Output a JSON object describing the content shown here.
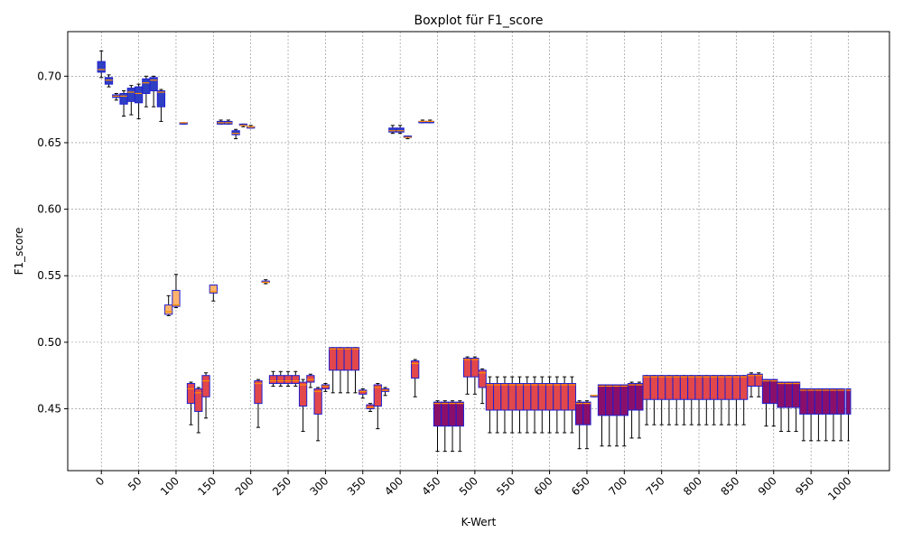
{
  "chart_data": {
    "type": "boxplot",
    "title": "Boxplot für F1_score",
    "xlabel": "K-Wert",
    "ylabel": "F1_score",
    "xlim": [
      -45,
      1055
    ],
    "ylim": [
      0.4035,
      0.7335
    ],
    "grid": true,
    "x_ticks": [
      "0",
      "50",
      "100",
      "150",
      "200",
      "250",
      "300",
      "350",
      "400",
      "450",
      "500",
      "550",
      "600",
      "650",
      "700",
      "750",
      "800",
      "850",
      "900",
      "950",
      "1000"
    ],
    "y_ticks": [
      "0.45",
      "0.50",
      "0.55",
      "0.60",
      "0.65",
      "0.70"
    ],
    "colors": {
      "blue_fill": "#2f3fc4",
      "orange_fill": "#ffb36b",
      "red_fill": "#e2474b",
      "purple_fill": "#8a0f6a",
      "box_edge": "#1f1fd0",
      "median": "#ff8c00",
      "whisker": "#000000",
      "grid": "#888888"
    },
    "boxes": [
      {
        "x": 0,
        "w": 10,
        "min": 0.699,
        "q1": 0.703,
        "med": 0.705,
        "q3": 0.711,
        "max": 0.719,
        "fill": "blue"
      },
      {
        "x": 10,
        "w": 10,
        "min": 0.692,
        "q1": 0.694,
        "med": 0.697,
        "q3": 0.699,
        "max": 0.701,
        "fill": "blue"
      },
      {
        "x": 20,
        "w": 10,
        "min": 0.682,
        "q1": 0.684,
        "med": 0.685,
        "q3": 0.686,
        "max": 0.687,
        "fill": "blue"
      },
      {
        "x": 30,
        "w": 10,
        "min": 0.67,
        "q1": 0.679,
        "med": 0.685,
        "q3": 0.687,
        "max": 0.689,
        "fill": "blue"
      },
      {
        "x": 40,
        "w": 10,
        "min": 0.671,
        "q1": 0.681,
        "med": 0.688,
        "q3": 0.691,
        "max": 0.693,
        "fill": "blue"
      },
      {
        "x": 50,
        "w": 10,
        "min": 0.668,
        "q1": 0.68,
        "med": 0.687,
        "q3": 0.692,
        "max": 0.694,
        "fill": "blue"
      },
      {
        "x": 60,
        "w": 10,
        "min": 0.677,
        "q1": 0.687,
        "med": 0.695,
        "q3": 0.698,
        "max": 0.7,
        "fill": "blue"
      },
      {
        "x": 70,
        "w": 10,
        "min": 0.677,
        "q1": 0.689,
        "med": 0.697,
        "q3": 0.699,
        "max": 0.7,
        "fill": "blue"
      },
      {
        "x": 80,
        "w": 10,
        "min": 0.666,
        "q1": 0.677,
        "med": 0.688,
        "q3": 0.689,
        "max": 0.69,
        "fill": "blue"
      },
      {
        "x": 90,
        "w": 10,
        "min": 0.52,
        "q1": 0.521,
        "med": 0.523,
        "q3": 0.528,
        "max": 0.535,
        "fill": "orange"
      },
      {
        "x": 100,
        "w": 10,
        "min": 0.526,
        "q1": 0.527,
        "med": 0.528,
        "q3": 0.539,
        "max": 0.551,
        "fill": "orange"
      },
      {
        "x": 110,
        "w": 10,
        "min": 0.664,
        "q1": 0.664,
        "med": 0.665,
        "q3": 0.665,
        "max": 0.665,
        "fill": "blue"
      },
      {
        "x": 120,
        "w": 10,
        "min": 0.438,
        "q1": 0.454,
        "med": 0.465,
        "q3": 0.469,
        "max": 0.47,
        "fill": "red"
      },
      {
        "x": 130,
        "w": 10,
        "min": 0.432,
        "q1": 0.448,
        "med": 0.462,
        "q3": 0.465,
        "max": 0.466,
        "fill": "red"
      },
      {
        "x": 140,
        "w": 10,
        "min": 0.443,
        "q1": 0.459,
        "med": 0.471,
        "q3": 0.475,
        "max": 0.477,
        "fill": "red"
      },
      {
        "x": 150,
        "w": 10,
        "min": 0.531,
        "q1": 0.537,
        "med": 0.538,
        "q3": 0.543,
        "max": 0.543,
        "fill": "orange"
      },
      {
        "x": 160,
        "w": 10,
        "min": 0.664,
        "q1": 0.664,
        "med": 0.665,
        "q3": 0.666,
        "max": 0.667,
        "fill": "blue"
      },
      {
        "x": 170,
        "w": 10,
        "min": 0.664,
        "q1": 0.664,
        "med": 0.665,
        "q3": 0.666,
        "max": 0.667,
        "fill": "blue"
      },
      {
        "x": 180,
        "w": 10,
        "min": 0.653,
        "q1": 0.656,
        "med": 0.657,
        "q3": 0.659,
        "max": 0.66,
        "fill": "blue"
      },
      {
        "x": 190,
        "w": 10,
        "min": 0.662,
        "q1": 0.663,
        "med": 0.663,
        "q3": 0.664,
        "max": 0.664,
        "fill": "blue"
      },
      {
        "x": 200,
        "w": 10,
        "min": 0.661,
        "q1": 0.661,
        "med": 0.662,
        "q3": 0.662,
        "max": 0.663,
        "fill": "orange"
      },
      {
        "x": 210,
        "w": 10,
        "min": 0.436,
        "q1": 0.454,
        "med": 0.469,
        "q3": 0.471,
        "max": 0.472,
        "fill": "red"
      },
      {
        "x": 220,
        "w": 10,
        "min": 0.544,
        "q1": 0.545,
        "med": 0.545,
        "q3": 0.546,
        "max": 0.547,
        "fill": "orange"
      },
      {
        "x": 230,
        "w": 10,
        "min": 0.467,
        "q1": 0.469,
        "med": 0.471,
        "q3": 0.475,
        "max": 0.478,
        "fill": "red"
      },
      {
        "x": 240,
        "w": 10,
        "min": 0.467,
        "q1": 0.469,
        "med": 0.471,
        "q3": 0.475,
        "max": 0.478,
        "fill": "red"
      },
      {
        "x": 250,
        "w": 10,
        "min": 0.467,
        "q1": 0.469,
        "med": 0.471,
        "q3": 0.475,
        "max": 0.478,
        "fill": "red"
      },
      {
        "x": 260,
        "w": 10,
        "min": 0.467,
        "q1": 0.469,
        "med": 0.471,
        "q3": 0.475,
        "max": 0.478,
        "fill": "red"
      },
      {
        "x": 270,
        "w": 10,
        "min": 0.433,
        "q1": 0.452,
        "med": 0.468,
        "q3": 0.47,
        "max": 0.472,
        "fill": "red"
      },
      {
        "x": 280,
        "w": 10,
        "min": 0.466,
        "q1": 0.47,
        "med": 0.472,
        "q3": 0.475,
        "max": 0.476,
        "fill": "red"
      },
      {
        "x": 290,
        "w": 10,
        "min": 0.426,
        "q1": 0.446,
        "med": 0.463,
        "q3": 0.465,
        "max": 0.466,
        "fill": "red"
      },
      {
        "x": 300,
        "w": 10,
        "min": 0.463,
        "q1": 0.465,
        "med": 0.467,
        "q3": 0.468,
        "max": 0.469,
        "fill": "red"
      },
      {
        "x": 310,
        "w": 10,
        "min": 0.462,
        "q1": 0.479,
        "med": 0.495,
        "q3": 0.496,
        "max": 0.496,
        "fill": "red"
      },
      {
        "x": 320,
        "w": 10,
        "min": 0.462,
        "q1": 0.479,
        "med": 0.495,
        "q3": 0.496,
        "max": 0.496,
        "fill": "red"
      },
      {
        "x": 330,
        "w": 10,
        "min": 0.462,
        "q1": 0.479,
        "med": 0.495,
        "q3": 0.496,
        "max": 0.496,
        "fill": "red"
      },
      {
        "x": 340,
        "w": 10,
        "min": 0.462,
        "q1": 0.479,
        "med": 0.495,
        "q3": 0.496,
        "max": 0.496,
        "fill": "red"
      },
      {
        "x": 350,
        "w": 10,
        "min": 0.458,
        "q1": 0.461,
        "med": 0.463,
        "q3": 0.464,
        "max": 0.465,
        "fill": "red"
      },
      {
        "x": 360,
        "w": 10,
        "min": 0.448,
        "q1": 0.45,
        "med": 0.451,
        "q3": 0.453,
        "max": 0.454,
        "fill": "red"
      },
      {
        "x": 370,
        "w": 10,
        "min": 0.435,
        "q1": 0.452,
        "med": 0.466,
        "q3": 0.468,
        "max": 0.469,
        "fill": "red"
      },
      {
        "x": 380,
        "w": 10,
        "min": 0.46,
        "q1": 0.463,
        "med": 0.464,
        "q3": 0.465,
        "max": 0.466,
        "fill": "red"
      },
      {
        "x": 390,
        "w": 10,
        "min": 0.657,
        "q1": 0.658,
        "med": 0.659,
        "q3": 0.661,
        "max": 0.663,
        "fill": "blue"
      },
      {
        "x": 400,
        "w": 10,
        "min": 0.657,
        "q1": 0.658,
        "med": 0.659,
        "q3": 0.661,
        "max": 0.663,
        "fill": "blue"
      },
      {
        "x": 410,
        "w": 10,
        "min": 0.653,
        "q1": 0.654,
        "med": 0.654,
        "q3": 0.655,
        "max": 0.655,
        "fill": "blue"
      },
      {
        "x": 420,
        "w": 10,
        "min": 0.459,
        "q1": 0.473,
        "med": 0.484,
        "q3": 0.486,
        "max": 0.487,
        "fill": "red"
      },
      {
        "x": 430,
        "w": 10,
        "min": 0.665,
        "q1": 0.665,
        "med": 0.666,
        "q3": 0.666,
        "max": 0.667,
        "fill": "blue"
      },
      {
        "x": 440,
        "w": 10,
        "min": 0.665,
        "q1": 0.665,
        "med": 0.666,
        "q3": 0.666,
        "max": 0.667,
        "fill": "blue"
      },
      {
        "x": 450,
        "w": 10,
        "min": 0.418,
        "q1": 0.437,
        "med": 0.454,
        "q3": 0.455,
        "max": 0.456,
        "fill": "purple"
      },
      {
        "x": 460,
        "w": 10,
        "min": 0.418,
        "q1": 0.437,
        "med": 0.454,
        "q3": 0.455,
        "max": 0.456,
        "fill": "purple"
      },
      {
        "x": 470,
        "w": 10,
        "min": 0.418,
        "q1": 0.437,
        "med": 0.454,
        "q3": 0.455,
        "max": 0.456,
        "fill": "purple"
      },
      {
        "x": 480,
        "w": 10,
        "min": 0.418,
        "q1": 0.437,
        "med": 0.454,
        "q3": 0.455,
        "max": 0.456,
        "fill": "purple"
      },
      {
        "x": 490,
        "w": 10,
        "min": 0.461,
        "q1": 0.474,
        "med": 0.487,
        "q3": 0.488,
        "max": 0.489,
        "fill": "red"
      },
      {
        "x": 500,
        "w": 10,
        "min": 0.461,
        "q1": 0.474,
        "med": 0.487,
        "q3": 0.488,
        "max": 0.489,
        "fill": "red"
      },
      {
        "x": 510,
        "w": 10,
        "min": 0.454,
        "q1": 0.466,
        "med": 0.477,
        "q3": 0.479,
        "max": 0.48,
        "fill": "red"
      },
      {
        "x": 520,
        "w": 10,
        "min": 0.432,
        "q1": 0.449,
        "med": 0.468,
        "q3": 0.469,
        "max": 0.474,
        "fill": "red"
      },
      {
        "x": 530,
        "w": 10,
        "min": 0.432,
        "q1": 0.449,
        "med": 0.468,
        "q3": 0.469,
        "max": 0.474,
        "fill": "red"
      },
      {
        "x": 540,
        "w": 10,
        "min": 0.432,
        "q1": 0.449,
        "med": 0.468,
        "q3": 0.469,
        "max": 0.474,
        "fill": "red"
      },
      {
        "x": 550,
        "w": 10,
        "min": 0.432,
        "q1": 0.449,
        "med": 0.468,
        "q3": 0.469,
        "max": 0.474,
        "fill": "red"
      },
      {
        "x": 560,
        "w": 10,
        "min": 0.432,
        "q1": 0.449,
        "med": 0.468,
        "q3": 0.469,
        "max": 0.474,
        "fill": "red"
      },
      {
        "x": 570,
        "w": 10,
        "min": 0.432,
        "q1": 0.449,
        "med": 0.468,
        "q3": 0.469,
        "max": 0.474,
        "fill": "red"
      },
      {
        "x": 580,
        "w": 10,
        "min": 0.432,
        "q1": 0.449,
        "med": 0.468,
        "q3": 0.469,
        "max": 0.474,
        "fill": "red"
      },
      {
        "x": 590,
        "w": 10,
        "min": 0.432,
        "q1": 0.449,
        "med": 0.468,
        "q3": 0.469,
        "max": 0.474,
        "fill": "red"
      },
      {
        "x": 600,
        "w": 10,
        "min": 0.432,
        "q1": 0.449,
        "med": 0.468,
        "q3": 0.469,
        "max": 0.474,
        "fill": "red"
      },
      {
        "x": 610,
        "w": 10,
        "min": 0.432,
        "q1": 0.449,
        "med": 0.468,
        "q3": 0.469,
        "max": 0.474,
        "fill": "red"
      },
      {
        "x": 620,
        "w": 10,
        "min": 0.432,
        "q1": 0.449,
        "med": 0.468,
        "q3": 0.469,
        "max": 0.474,
        "fill": "red"
      },
      {
        "x": 630,
        "w": 10,
        "min": 0.432,
        "q1": 0.449,
        "med": 0.468,
        "q3": 0.469,
        "max": 0.474,
        "fill": "red"
      },
      {
        "x": 640,
        "w": 10,
        "min": 0.42,
        "q1": 0.438,
        "med": 0.454,
        "q3": 0.455,
        "max": 0.456,
        "fill": "purple"
      },
      {
        "x": 650,
        "w": 10,
        "min": 0.42,
        "q1": 0.438,
        "med": 0.454,
        "q3": 0.455,
        "max": 0.456,
        "fill": "purple"
      },
      {
        "x": 660,
        "w": 10,
        "min": 0.459,
        "q1": 0.459,
        "med": 0.46,
        "q3": 0.46,
        "max": 0.46,
        "fill": "orange"
      },
      {
        "x": 670,
        "w": 10,
        "min": 0.422,
        "q1": 0.445,
        "med": 0.467,
        "q3": 0.468,
        "max": 0.468,
        "fill": "purple"
      },
      {
        "x": 680,
        "w": 10,
        "min": 0.422,
        "q1": 0.445,
        "med": 0.467,
        "q3": 0.468,
        "max": 0.468,
        "fill": "purple"
      },
      {
        "x": 690,
        "w": 10,
        "min": 0.422,
        "q1": 0.445,
        "med": 0.467,
        "q3": 0.468,
        "max": 0.468,
        "fill": "purple"
      },
      {
        "x": 700,
        "w": 10,
        "min": 0.422,
        "q1": 0.445,
        "med": 0.467,
        "q3": 0.468,
        "max": 0.468,
        "fill": "purple"
      },
      {
        "x": 710,
        "w": 10,
        "min": 0.428,
        "q1": 0.449,
        "med": 0.468,
        "q3": 0.469,
        "max": 0.47,
        "fill": "purple"
      },
      {
        "x": 720,
        "w": 10,
        "min": 0.428,
        "q1": 0.449,
        "med": 0.468,
        "q3": 0.469,
        "max": 0.47,
        "fill": "purple"
      },
      {
        "x": 730,
        "w": 10,
        "min": 0.438,
        "q1": 0.457,
        "med": 0.474,
        "q3": 0.475,
        "max": 0.475,
        "fill": "red"
      },
      {
        "x": 740,
        "w": 10,
        "min": 0.438,
        "q1": 0.457,
        "med": 0.474,
        "q3": 0.475,
        "max": 0.475,
        "fill": "red"
      },
      {
        "x": 750,
        "w": 10,
        "min": 0.438,
        "q1": 0.457,
        "med": 0.474,
        "q3": 0.475,
        "max": 0.475,
        "fill": "red"
      },
      {
        "x": 760,
        "w": 10,
        "min": 0.438,
        "q1": 0.457,
        "med": 0.474,
        "q3": 0.475,
        "max": 0.475,
        "fill": "red"
      },
      {
        "x": 770,
        "w": 10,
        "min": 0.438,
        "q1": 0.457,
        "med": 0.474,
        "q3": 0.475,
        "max": 0.475,
        "fill": "red"
      },
      {
        "x": 780,
        "w": 10,
        "min": 0.438,
        "q1": 0.457,
        "med": 0.474,
        "q3": 0.475,
        "max": 0.475,
        "fill": "red"
      },
      {
        "x": 790,
        "w": 10,
        "min": 0.438,
        "q1": 0.457,
        "med": 0.474,
        "q3": 0.475,
        "max": 0.475,
        "fill": "red"
      },
      {
        "x": 800,
        "w": 10,
        "min": 0.438,
        "q1": 0.457,
        "med": 0.474,
        "q3": 0.475,
        "max": 0.475,
        "fill": "red"
      },
      {
        "x": 810,
        "w": 10,
        "min": 0.438,
        "q1": 0.457,
        "med": 0.474,
        "q3": 0.475,
        "max": 0.475,
        "fill": "red"
      },
      {
        "x": 820,
        "w": 10,
        "min": 0.438,
        "q1": 0.457,
        "med": 0.474,
        "q3": 0.475,
        "max": 0.475,
        "fill": "red"
      },
      {
        "x": 830,
        "w": 10,
        "min": 0.438,
        "q1": 0.457,
        "med": 0.474,
        "q3": 0.475,
        "max": 0.475,
        "fill": "red"
      },
      {
        "x": 840,
        "w": 10,
        "min": 0.438,
        "q1": 0.457,
        "med": 0.474,
        "q3": 0.475,
        "max": 0.475,
        "fill": "red"
      },
      {
        "x": 850,
        "w": 10,
        "min": 0.438,
        "q1": 0.457,
        "med": 0.474,
        "q3": 0.475,
        "max": 0.475,
        "fill": "red"
      },
      {
        "x": 860,
        "w": 10,
        "min": 0.438,
        "q1": 0.457,
        "med": 0.474,
        "q3": 0.475,
        "max": 0.475,
        "fill": "red"
      },
      {
        "x": 870,
        "w": 10,
        "min": 0.459,
        "q1": 0.467,
        "med": 0.475,
        "q3": 0.476,
        "max": 0.477,
        "fill": "red"
      },
      {
        "x": 880,
        "w": 10,
        "min": 0.459,
        "q1": 0.467,
        "med": 0.475,
        "q3": 0.476,
        "max": 0.477,
        "fill": "red"
      },
      {
        "x": 890,
        "w": 10,
        "min": 0.437,
        "q1": 0.454,
        "med": 0.471,
        "q3": 0.472,
        "max": 0.472,
        "fill": "purple"
      },
      {
        "x": 900,
        "w": 10,
        "min": 0.437,
        "q1": 0.454,
        "med": 0.471,
        "q3": 0.472,
        "max": 0.472,
        "fill": "purple"
      },
      {
        "x": 910,
        "w": 10,
        "min": 0.433,
        "q1": 0.451,
        "med": 0.469,
        "q3": 0.47,
        "max": 0.47,
        "fill": "purple"
      },
      {
        "x": 920,
        "w": 10,
        "min": 0.433,
        "q1": 0.451,
        "med": 0.469,
        "q3": 0.47,
        "max": 0.47,
        "fill": "purple"
      },
      {
        "x": 930,
        "w": 10,
        "min": 0.433,
        "q1": 0.451,
        "med": 0.469,
        "q3": 0.47,
        "max": 0.47,
        "fill": "purple"
      },
      {
        "x": 940,
        "w": 10,
        "min": 0.426,
        "q1": 0.446,
        "med": 0.464,
        "q3": 0.465,
        "max": 0.465,
        "fill": "purple"
      },
      {
        "x": 950,
        "w": 10,
        "min": 0.426,
        "q1": 0.446,
        "med": 0.464,
        "q3": 0.465,
        "max": 0.465,
        "fill": "purple"
      },
      {
        "x": 960,
        "w": 10,
        "min": 0.426,
        "q1": 0.446,
        "med": 0.464,
        "q3": 0.465,
        "max": 0.465,
        "fill": "purple"
      },
      {
        "x": 970,
        "w": 10,
        "min": 0.426,
        "q1": 0.446,
        "med": 0.464,
        "q3": 0.465,
        "max": 0.465,
        "fill": "purple"
      },
      {
        "x": 980,
        "w": 10,
        "min": 0.426,
        "q1": 0.446,
        "med": 0.464,
        "q3": 0.465,
        "max": 0.465,
        "fill": "purple"
      },
      {
        "x": 990,
        "w": 10,
        "min": 0.426,
        "q1": 0.446,
        "med": 0.464,
        "q3": 0.465,
        "max": 0.465,
        "fill": "purple"
      },
      {
        "x": 1000,
        "w": 6,
        "min": 0.426,
        "q1": 0.446,
        "med": 0.464,
        "q3": 0.465,
        "max": 0.465,
        "fill": "purple"
      }
    ]
  }
}
